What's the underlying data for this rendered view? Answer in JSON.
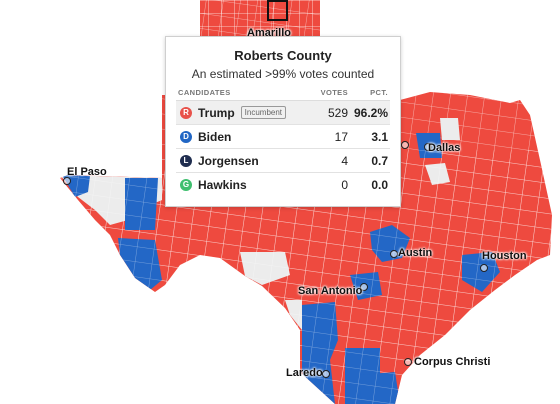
{
  "tooltip": {
    "county": "Roberts County",
    "subtitle": "An estimated >99% votes counted",
    "columns": {
      "candidates": "CANDIDATES",
      "votes": "VOTES",
      "pct": "PCT."
    },
    "incumbent_label": "Incumbent",
    "rows": [
      {
        "badge": "R",
        "name": "Trump",
        "votes": "529",
        "pct": "96.2%",
        "color": "#e8524a"
      },
      {
        "badge": "D",
        "name": "Biden",
        "votes": "17",
        "pct": "3.1",
        "color": "#2166c4"
      },
      {
        "badge": "L",
        "name": "Jorgensen",
        "votes": "4",
        "pct": "0.7",
        "color": "#1f2d4f"
      },
      {
        "badge": "G",
        "name": "Hawkins",
        "votes": "0",
        "pct": "0.0",
        "color": "#3fbf6f"
      }
    ]
  },
  "cities": {
    "amarillo": "Amarillo",
    "el_paso": "El Paso",
    "dallas": "Dallas",
    "austin": "Austin",
    "houston": "Houston",
    "san_antonio": "San Antonio",
    "corpus_christi": "Corpus Christi",
    "laredo": "Laredo"
  },
  "colors": {
    "republican": "#ee4a3f",
    "democrat": "#2367c6",
    "no_data": "#ececec",
    "county_border": "#ffffff"
  }
}
